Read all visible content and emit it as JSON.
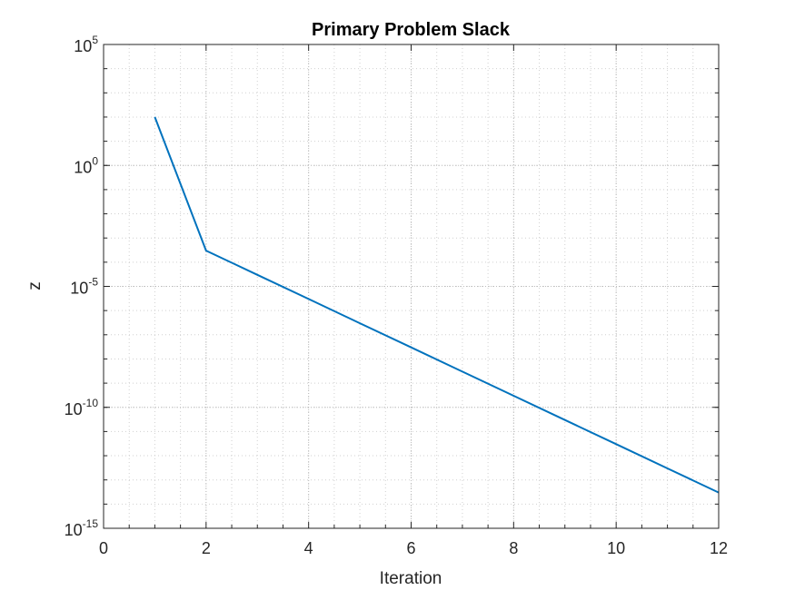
{
  "chart_data": {
    "type": "line",
    "title": "Primary Problem Slack",
    "xlabel": "Iteration",
    "ylabel": "z",
    "xlim": [
      0,
      12
    ],
    "ylim": [
      1e-15,
      100000
    ],
    "yscale": "log",
    "grid": true,
    "minor_grid": true,
    "x_ticks": [
      0,
      2,
      4,
      6,
      8,
      10,
      12
    ],
    "x_tick_labels": [
      "0",
      "2",
      "4",
      "6",
      "8",
      "10",
      "12"
    ],
    "y_ticks": [
      {
        "value": 1e-15,
        "base": "10",
        "exponent": "-15"
      },
      {
        "value": 1e-10,
        "base": "10",
        "exponent": "-10"
      },
      {
        "value": 1e-05,
        "base": "10",
        "exponent": "-5"
      },
      {
        "value": 1,
        "base": "10",
        "exponent": "0"
      },
      {
        "value": 100000,
        "base": "10",
        "exponent": "5"
      }
    ],
    "series": [
      {
        "color": "#0072BD",
        "x": [
          1,
          2,
          3,
          4,
          5,
          6,
          7,
          8,
          9,
          10,
          11,
          12
        ],
        "y": [
          100,
          0.0003,
          3e-05,
          3e-06,
          3e-07,
          3e-08,
          3e-09,
          3e-10,
          3e-11,
          3e-12,
          3e-13,
          3e-14
        ]
      }
    ]
  }
}
